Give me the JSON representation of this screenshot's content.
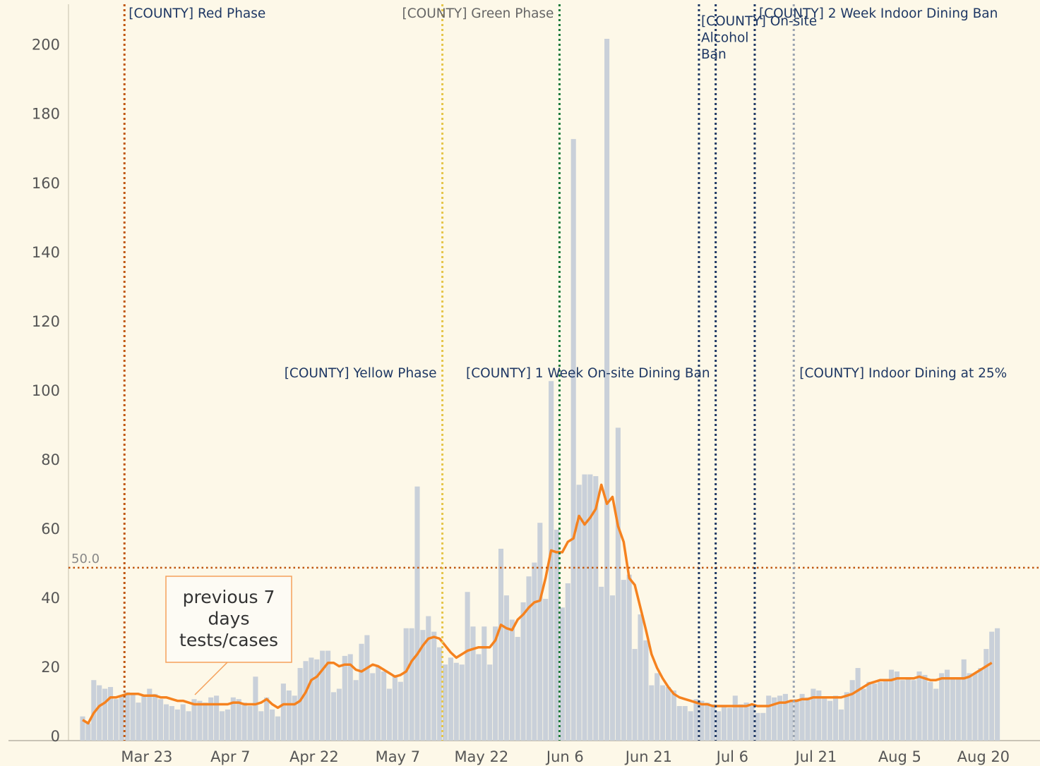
{
  "chart_data": {
    "type": "bar",
    "categories": [
      null,
      null,
      null,
      null,
      null,
      null,
      null,
      null,
      null,
      null,
      null,
      null,
      "Mar 23",
      null,
      null,
      null,
      null,
      null,
      null,
      null,
      null,
      null,
      null,
      null,
      null,
      null,
      null,
      "Apr 7",
      null,
      null,
      null,
      null,
      null,
      null,
      null,
      null,
      null,
      null,
      null,
      null,
      null,
      null,
      "Apr 22",
      null,
      null,
      null,
      null,
      null,
      null,
      null,
      null,
      null,
      null,
      null,
      null,
      null,
      null,
      "May 7",
      null,
      null,
      null,
      null,
      null,
      null,
      null,
      null,
      null,
      null,
      null,
      null,
      null,
      null,
      "May 22",
      null,
      null,
      null,
      null,
      null,
      null,
      null,
      null,
      null,
      null,
      null,
      null,
      null,
      null,
      "Jun 6",
      null,
      null,
      null,
      null,
      null,
      null,
      null,
      null,
      null,
      null,
      null,
      null,
      null,
      null,
      "Jun 21",
      null,
      null,
      null,
      null,
      null,
      null,
      null,
      null,
      null,
      null,
      null,
      null,
      null,
      null,
      "Jul 6",
      null,
      null,
      null,
      null,
      null,
      null,
      null,
      null,
      null,
      null,
      null,
      null,
      null,
      null,
      "Jul 21",
      null,
      null,
      null,
      null,
      null,
      null,
      null,
      null,
      null,
      null,
      null,
      null,
      null,
      null,
      "Aug 5",
      null,
      null,
      null,
      null,
      null,
      null,
      null,
      null,
      null,
      null,
      null,
      null,
      null,
      null,
      "Aug 20",
      null,
      null
    ],
    "series": [
      {
        "type": "bar",
        "color": "#c9d0d9",
        "values": [
          7,
          5,
          17.5,
          16,
          15,
          15.5,
          12,
          13,
          14,
          13.5,
          11,
          13,
          15,
          13.5,
          12,
          10.5,
          10,
          9,
          10.5,
          8.5,
          12,
          11.5,
          11,
          12.5,
          13,
          8.5,
          9,
          12.5,
          12,
          11,
          10,
          18.5,
          8.5,
          12.5,
          9,
          7,
          16.5,
          14.5,
          13,
          21,
          23,
          24,
          23.5,
          26,
          26,
          14,
          15,
          24.5,
          25,
          17.5,
          28,
          30.5,
          19.5,
          21.5,
          20,
          15,
          19,
          17,
          32.5,
          32.5,
          73.5,
          32,
          36,
          31.5,
          27,
          22,
          24,
          22.5,
          22,
          43,
          33,
          25,
          33,
          22,
          33,
          55.5,
          42,
          35,
          30,
          40,
          47.5,
          51.5,
          63,
          41,
          104,
          61,
          38.5,
          45.5,
          174,
          74,
          77,
          77,
          76.5,
          44.5,
          203,
          42,
          90.5,
          46.5,
          48,
          26.5,
          36.5,
          29,
          16,
          19.5,
          16,
          15.5,
          14.5,
          10,
          10,
          8.5,
          12,
          11.5,
          11,
          10.5,
          8.5,
          10,
          9.5,
          13,
          10.5,
          11,
          10,
          8,
          8,
          13,
          12.5,
          13,
          13.5,
          11.5,
          12,
          13.5,
          12.5,
          15,
          14.5,
          12.5,
          11.5,
          13,
          9,
          14,
          17.5,
          21,
          15,
          17,
          16.5,
          17,
          17.5,
          20.5,
          20,
          17.5,
          18,
          17.5,
          20,
          19,
          17,
          15,
          19.5,
          20.5,
          18,
          18,
          23.5,
          19.5,
          19.5,
          21,
          26.5,
          31.5,
          32.5
        ]
      },
      {
        "type": "line",
        "color": "#f5821f",
        "values": [
          6,
          5,
          8,
          10,
          11,
          12.5,
          12.5,
          13,
          13.5,
          13.5,
          13.5,
          13,
          13,
          13,
          12.5,
          12.5,
          12,
          11.5,
          11.5,
          11,
          10.5,
          10.5,
          10.5,
          10.5,
          10.5,
          10.5,
          10.5,
          11,
          11,
          10.5,
          10.5,
          10.5,
          11,
          12,
          10.5,
          9.5,
          10.5,
          10.5,
          10.5,
          11.5,
          14,
          17.5,
          18.5,
          20.5,
          22.5,
          22.5,
          21.5,
          22,
          22,
          20.5,
          20,
          21,
          22,
          21.5,
          20.5,
          19.5,
          18.5,
          19,
          20,
          23,
          25,
          27.5,
          29.5,
          30,
          29.5,
          27.5,
          25.5,
          24,
          25,
          26,
          26.5,
          27,
          27,
          27,
          29,
          33.5,
          32.5,
          32,
          35,
          36.5,
          38.5,
          40,
          40.5,
          47,
          55,
          54.5,
          54.5,
          57.5,
          58.5,
          65,
          62.5,
          64.5,
          67,
          74,
          68.5,
          70.5,
          62,
          57.5,
          47,
          45,
          38.5,
          32,
          25,
          21,
          18,
          15.5,
          13.5,
          12.5,
          12,
          11.5,
          11,
          10.5,
          10.5,
          10,
          10,
          10,
          10,
          10,
          10,
          10,
          10.5,
          10,
          10,
          10,
          10.5,
          11,
          11,
          11.5,
          11.5,
          12,
          12,
          12.5,
          12.5,
          12.5,
          12.5,
          12.5,
          12.5,
          13,
          13.5,
          14.5,
          15.5,
          16.5,
          17,
          17.5,
          17.5,
          17.5,
          18,
          18,
          18,
          18,
          18.5,
          18,
          17.5,
          17.5,
          18,
          18,
          18,
          18,
          18,
          18.5,
          19.5,
          20.5,
          21.5,
          22.5,
          null
        ]
      }
    ],
    "ylim": [
      0,
      213
    ],
    "yticks": [
      0,
      20,
      40,
      60,
      80,
      100,
      120,
      140,
      160,
      180,
      200
    ],
    "grid": true,
    "reference_y": {
      "value": 50,
      "label": "50.0",
      "color": "#c0560f"
    },
    "reference_lines": [
      {
        "x": 8,
        "label": "[COUNTY] Red Phase",
        "color": "#c0560f"
      },
      {
        "x": 65,
        "label": "[COUNTY] Yellow Phase",
        "color": "#e5c54a"
      },
      {
        "x": 86,
        "label": "[COUNTY] Green Phase",
        "color": "#1b7a3a"
      },
      {
        "x": 114,
        "label": "[COUNTY] 1 Week On-site Dining Ban",
        "color": "#1f3864"
      },
      {
        "x": 111,
        "label": "[COUNTY] On-site Alcohol Ban",
        "color": "#1f3864"
      },
      {
        "x": 121,
        "label": "[COUNTY] 2 Week Indoor Dining Ban",
        "color": "#1f3864"
      },
      {
        "x": 128,
        "label": "[COUNTY] Indoor Dining at 25%",
        "color": "#9aa3b0"
      }
    ],
    "callout": [
      "previous 7",
      "days",
      "tests/cases"
    ]
  }
}
